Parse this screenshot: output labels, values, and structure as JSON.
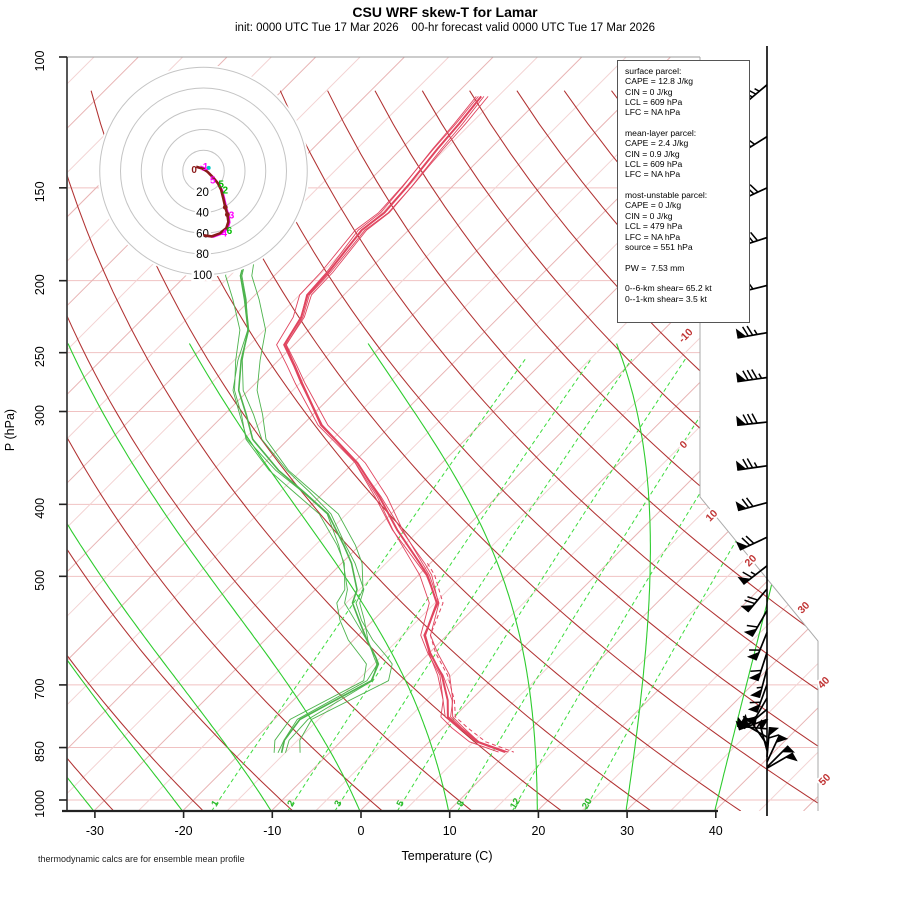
{
  "page": {
    "title": "CSU WRF skew-T for Lamar",
    "subtitle": "init: 0000 UTC Tue 17 Mar 2026    00-hr forecast valid 0000 UTC Tue 17 Mar 2026",
    "footnote": "thermodynamic calcs are for ensemble mean profile",
    "x_axis_title": "Temperature (C)",
    "y_axis_title": "P (hPa)"
  },
  "info_box": {
    "lines": [
      "surface parcel:",
      "CAPE = 12.8 J/kg",
      "CIN = 0 J/kg",
      "LCL = 609 hPa",
      "LFC = NA hPa",
      "",
      "mean-layer parcel:",
      "CAPE = 2.4 J/kg",
      "CIN = 0.9 J/kg",
      "LCL = 609 hPa",
      "LFC = NA hPa",
      "",
      "most-unstable parcel:",
      "CAPE = 0 J/kg",
      "CIN = 0 J/kg",
      "LCL = 479 hPa",
      "LFC = NA hPa",
      "source = 551 hPa",
      "",
      "PW =  7.53 mm",
      "",
      "0--6-km shear= 65.2 kt",
      "0--1-km shear= 3.5 kt"
    ]
  },
  "chart_data": {
    "type": "line",
    "subtype": "skew-T log-p sounding with hodograph and wind barbs",
    "title": "CSU WRF skew-T for Lamar",
    "xlabel": "Temperature (C)",
    "ylabel": "P (hPa)",
    "x_ticks": [
      -30,
      -20,
      -10,
      0,
      10,
      20,
      30,
      40
    ],
    "pressure_ticks": [
      100,
      150,
      200,
      250,
      300,
      400,
      500,
      700,
      850,
      1000
    ],
    "pressure_range": [
      100,
      1035
    ],
    "isotherm_step_c": 5,
    "isotherm_labels_right": [
      -10,
      0,
      10,
      20,
      30,
      40,
      50
    ],
    "dry_adiabats_theta_k": {
      "min": 233,
      "max": 503,
      "step": 10
    },
    "moist_adiabats_start_c": [
      -40,
      -30,
      -20,
      -10,
      0,
      10,
      20,
      30,
      40
    ],
    "mixing_ratio_g_kg": [
      1,
      2,
      3,
      5,
      8,
      12,
      20
    ],
    "ensemble_members": 4,
    "temperature_profile": [
      [
        113,
        -66.9
      ],
      [
        123,
        -66.3
      ],
      [
        133,
        -65.9
      ],
      [
        149,
        -65.1
      ],
      [
        162,
        -64.7
      ],
      [
        171,
        -65.3
      ],
      [
        195,
        -64.3
      ],
      [
        209,
        -64.1
      ],
      [
        224,
        -62.3
      ],
      [
        244,
        -61.1
      ],
      [
        260,
        -57.7
      ],
      [
        275,
        -54.8
      ],
      [
        313,
        -47.8
      ],
      [
        352,
        -39.5
      ],
      [
        391,
        -33.2
      ],
      [
        433,
        -27.5
      ],
      [
        480,
        -21.2
      ],
      [
        498,
        -19.0
      ],
      [
        543,
        -14.8
      ],
      [
        600,
        -12.5
      ],
      [
        634,
        -9.9
      ],
      [
        679,
        -6.1
      ],
      [
        734,
        -2.6
      ],
      [
        773,
        -0.7
      ],
      [
        800,
        1.9
      ],
      [
        835,
        5.4
      ],
      [
        862,
        9.7
      ]
    ],
    "dewpoint_profile": [
      [
        173,
        -78.9
      ],
      [
        185,
        -75.5
      ],
      [
        197,
        -73.8
      ],
      [
        212,
        -70.6
      ],
      [
        233,
        -66.8
      ],
      [
        256,
        -64.2
      ],
      [
        281,
        -61.1
      ],
      [
        303,
        -57.5
      ],
      [
        327,
        -54.0
      ],
      [
        360,
        -47.6
      ],
      [
        385,
        -42.3
      ],
      [
        412,
        -37.1
      ],
      [
        454,
        -31.8
      ],
      [
        480,
        -28.9
      ],
      [
        521,
        -25.3
      ],
      [
        543,
        -24.3
      ],
      [
        573,
        -21.6
      ],
      [
        609,
        -18.5
      ],
      [
        642,
        -15.6
      ],
      [
        656,
        -14.5
      ],
      [
        691,
        -13.4
      ],
      [
        779,
        -17.1
      ],
      [
        831,
        -16.5
      ],
      [
        864,
        -15.4
      ]
    ],
    "hodograph": {
      "rings_kt": [
        20,
        40,
        60,
        80,
        100
      ],
      "trace_uv_kt": [
        [
          -7,
          4
        ],
        [
          0,
          2
        ],
        [
          4,
          -1
        ],
        [
          9,
          -6
        ],
        [
          14,
          -12
        ],
        [
          17,
          -18
        ],
        [
          19,
          -26
        ],
        [
          21,
          -35
        ],
        [
          23,
          -42
        ],
        [
          24,
          -49
        ],
        [
          22,
          -55
        ],
        [
          16,
          -60
        ],
        [
          8,
          -63
        ],
        [
          0,
          -62
        ]
      ],
      "height_labels": [
        {
          "text": "0",
          "color": "#8b1a1a",
          "u": -9,
          "v": 1
        },
        {
          "text": "1",
          "color": "#ff00ff",
          "u": 2,
          "v": 4
        },
        {
          "text": "5",
          "color": "#ff00ff",
          "u": 9,
          "v": -9
        },
        {
          "text": "5",
          "color": "#00bb00",
          "u": 17,
          "v": -13
        },
        {
          "text": "2",
          "color": "#00bb00",
          "u": 21,
          "v": -19
        },
        {
          "text": "3",
          "color": "#ff00ff",
          "u": 27,
          "v": -43
        },
        {
          "text": "4",
          "color": "#ff00ff",
          "u": 20,
          "v": -60
        },
        {
          "text": "6",
          "color": "#00bb00",
          "u": 25,
          "v": -58
        }
      ]
    },
    "wind_barbs": [
      [
        109,
        -40,
        1,
        2,
        1
      ],
      [
        128,
        -32,
        1,
        2,
        0
      ],
      [
        150,
        -25,
        1,
        3,
        0
      ],
      [
        175,
        -18,
        1,
        3,
        0
      ],
      [
        203,
        -14,
        1,
        2,
        0
      ],
      [
        235,
        -10,
        1,
        2,
        1
      ],
      [
        270,
        -8,
        1,
        3,
        1
      ],
      [
        310,
        -6,
        1,
        3,
        0
      ],
      [
        355,
        -8,
        1,
        2,
        1
      ],
      [
        398,
        -15,
        1,
        2,
        0
      ],
      [
        443,
        -25,
        1,
        2,
        0
      ],
      [
        484,
        -38,
        1,
        1,
        1
      ],
      [
        520,
        -50,
        1,
        2,
        0
      ],
      [
        556,
        -60,
        1,
        1,
        0
      ],
      [
        595,
        -68,
        1,
        1,
        0
      ],
      [
        633,
        -72,
        1,
        1,
        0
      ],
      [
        666,
        -75,
        1,
        0,
        1
      ],
      [
        699,
        -70,
        1,
        1,
        0
      ],
      [
        729,
        -60,
        1,
        0,
        0
      ],
      [
        755,
        -40,
        1,
        1,
        0
      ],
      [
        779,
        -20,
        1,
        0,
        0
      ],
      [
        802,
        5,
        1,
        1,
        0
      ],
      [
        823,
        30,
        1,
        0,
        0
      ],
      [
        842,
        55,
        1,
        1,
        0
      ],
      [
        858,
        75,
        1,
        0,
        0
      ],
      [
        875,
        95,
        1,
        1,
        0
      ],
      [
        889,
        115,
        1,
        0,
        0
      ],
      [
        903,
        135,
        1,
        0,
        0
      ],
      [
        906,
        150,
        1,
        0,
        0
      ]
    ],
    "colors": {
      "temperature": "#e0455f",
      "dewpoint": "#4db34d",
      "moist_adiabat": "#2ecc2e",
      "mixing_ratio": "#3ddc3d",
      "mixing_label": "#2db82d",
      "dry_adiabat": "#b13232",
      "isotherm_major": "#e8b4b4",
      "isotherm_minor": "#f3d3d3",
      "isobar": "#f0c2c2",
      "isotherm_label": "#c03333",
      "hodograph_ring": "#c4c4c4",
      "hodograph_trace": "#8b1a1a",
      "hodograph_member": "#ff00ff",
      "hodograph_start_dot": "#00c8c8",
      "barbs": "#000000"
    }
  }
}
